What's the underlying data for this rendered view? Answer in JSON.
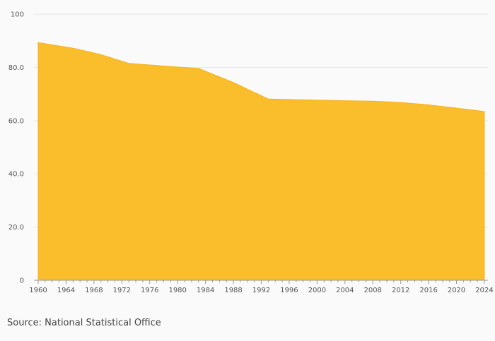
{
  "source": "Source: National Statistical Office",
  "colors": {
    "area": "#fabd2b",
    "grid": "#e6e6e6",
    "axis": "#999999"
  },
  "chart_data": {
    "type": "area",
    "title": "",
    "xlabel": "",
    "ylabel": "",
    "xlim": [
      1960,
      2024
    ],
    "ylim": [
      0,
      100
    ],
    "y_ticks": [
      {
        "value": 0,
        "label": "0"
      },
      {
        "value": 20,
        "label": "20.0"
      },
      {
        "value": 40,
        "label": "40.0"
      },
      {
        "value": 60,
        "label": "60.0"
      },
      {
        "value": 80,
        "label": "80.0"
      },
      {
        "value": 100,
        "label": "100"
      }
    ],
    "x_tick_labels": [
      1960,
      1964,
      1968,
      1972,
      1976,
      1980,
      1984,
      1988,
      1992,
      1996,
      2000,
      2004,
      2008,
      2012,
      2016,
      2020,
      2024
    ],
    "grid": true,
    "legend": "none",
    "x": [
      1960,
      1965,
      1969,
      1973,
      1977,
      1979,
      1983,
      1988,
      1993,
      1998,
      2003,
      2008,
      2012,
      2016,
      2020,
      2024
    ],
    "y": [
      89.3,
      87.2,
      84.8,
      81.5,
      80.7,
      80.3,
      79.6,
      74.3,
      68.1,
      67.8,
      67.5,
      67.3,
      66.8,
      65.9,
      64.7,
      63.4
    ]
  }
}
